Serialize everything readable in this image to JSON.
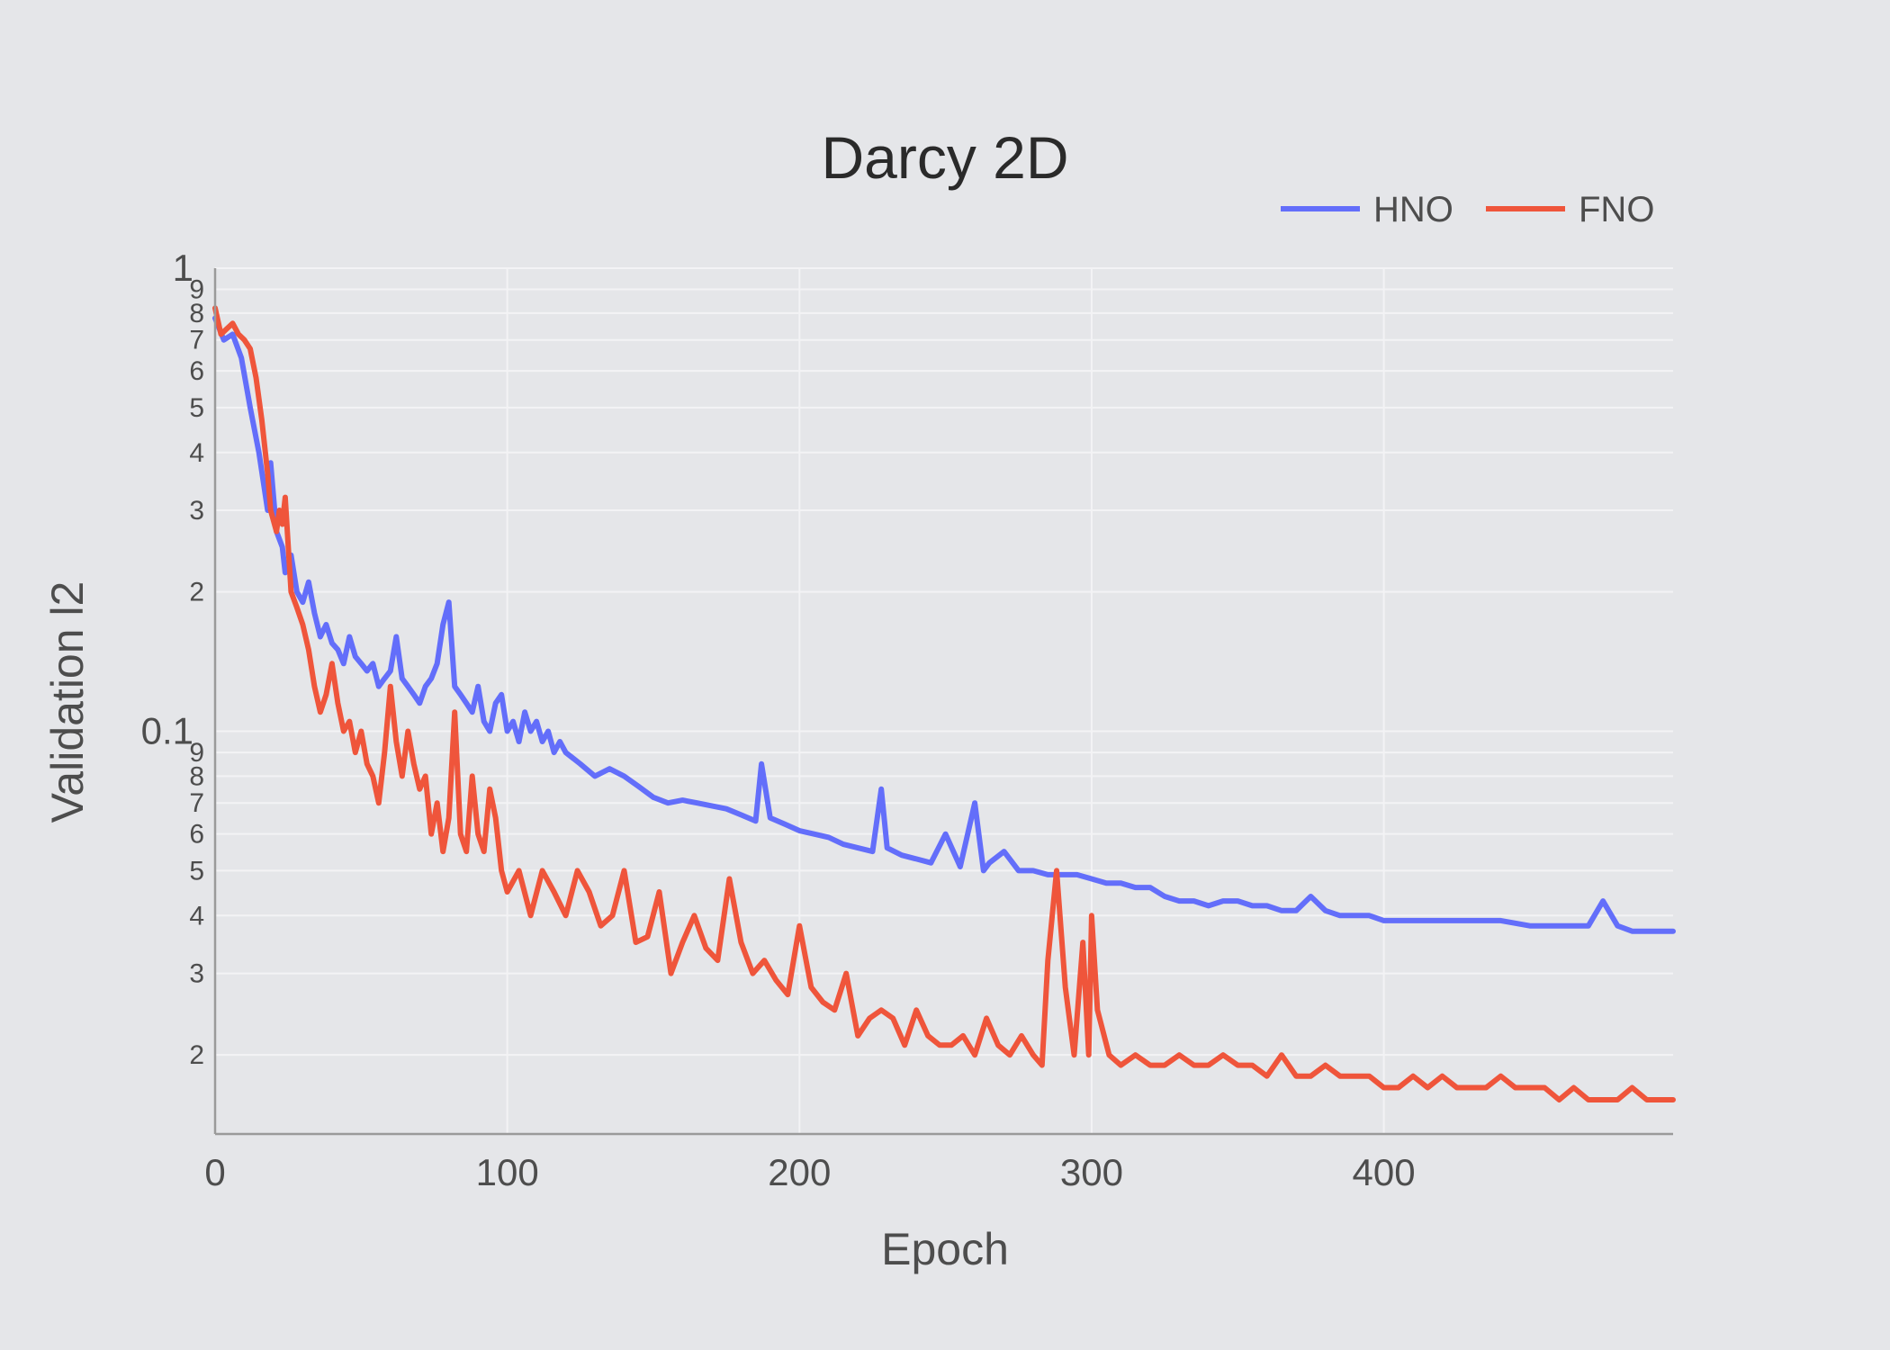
{
  "chart_data": {
    "type": "line",
    "title": "Darcy 2D",
    "xlabel": "Epoch",
    "ylabel": "Validation l2",
    "y_scale": "log",
    "xlim": [
      0,
      499
    ],
    "ylim": [
      0.0135,
      1
    ],
    "x_ticks": [
      0,
      100,
      200,
      300,
      400
    ],
    "y_major_ticks": [
      {
        "value": 0.1,
        "label": "0.1"
      },
      {
        "value": 1,
        "label": "1"
      }
    ],
    "y_minor_ticks": [
      {
        "value": 0.02,
        "label": "2"
      },
      {
        "value": 0.03,
        "label": "3"
      },
      {
        "value": 0.04,
        "label": "4"
      },
      {
        "value": 0.05,
        "label": "5"
      },
      {
        "value": 0.06,
        "label": "6"
      },
      {
        "value": 0.07,
        "label": "7"
      },
      {
        "value": 0.08,
        "label": "8"
      },
      {
        "value": 0.09,
        "label": "9"
      },
      {
        "value": 0.2,
        "label": "2"
      },
      {
        "value": 0.3,
        "label": "3"
      },
      {
        "value": 0.4,
        "label": "4"
      },
      {
        "value": 0.5,
        "label": "5"
      },
      {
        "value": 0.6,
        "label": "6"
      },
      {
        "value": 0.7,
        "label": "7"
      },
      {
        "value": 0.8,
        "label": "8"
      },
      {
        "value": 0.9,
        "label": "9"
      }
    ],
    "grid": true,
    "legend_position": "top-right",
    "series": [
      {
        "name": "HNO",
        "color": "#636efa",
        "x": [
          0,
          3,
          6,
          9,
          12,
          15,
          18,
          19,
          21,
          23,
          24,
          26,
          28,
          30,
          32,
          34,
          36,
          38,
          40,
          42,
          44,
          46,
          48,
          50,
          52,
          54,
          56,
          58,
          60,
          62,
          64,
          66,
          68,
          70,
          72,
          74,
          76,
          78,
          80,
          82,
          84,
          86,
          88,
          90,
          92,
          94,
          96,
          98,
          100,
          102,
          104,
          106,
          108,
          110,
          112,
          114,
          116,
          118,
          120,
          125,
          130,
          135,
          140,
          145,
          150,
          155,
          160,
          165,
          170,
          175,
          180,
          185,
          187,
          190,
          195,
          200,
          205,
          210,
          215,
          220,
          225,
          228,
          230,
          235,
          240,
          245,
          250,
          255,
          260,
          263,
          265,
          270,
          275,
          280,
          285,
          290,
          295,
          300,
          305,
          310,
          315,
          320,
          325,
          330,
          335,
          340,
          345,
          350,
          355,
          360,
          365,
          370,
          375,
          380,
          385,
          390,
          395,
          400,
          410,
          420,
          430,
          440,
          450,
          460,
          470,
          475,
          480,
          485,
          490,
          495,
          499
        ],
        "y": [
          0.78,
          0.7,
          0.72,
          0.64,
          0.5,
          0.4,
          0.3,
          0.38,
          0.27,
          0.25,
          0.22,
          0.24,
          0.2,
          0.19,
          0.21,
          0.18,
          0.16,
          0.17,
          0.155,
          0.15,
          0.14,
          0.16,
          0.145,
          0.14,
          0.135,
          0.14,
          0.125,
          0.13,
          0.135,
          0.16,
          0.13,
          0.125,
          0.12,
          0.115,
          0.125,
          0.13,
          0.14,
          0.17,
          0.19,
          0.125,
          0.12,
          0.115,
          0.11,
          0.125,
          0.105,
          0.1,
          0.115,
          0.12,
          0.1,
          0.105,
          0.095,
          0.11,
          0.1,
          0.105,
          0.095,
          0.1,
          0.09,
          0.095,
          0.09,
          0.085,
          0.08,
          0.083,
          0.08,
          0.076,
          0.072,
          0.07,
          0.071,
          0.07,
          0.069,
          0.068,
          0.066,
          0.064,
          0.085,
          0.065,
          0.063,
          0.061,
          0.06,
          0.059,
          0.057,
          0.056,
          0.055,
          0.075,
          0.056,
          0.054,
          0.053,
          0.052,
          0.06,
          0.051,
          0.07,
          0.05,
          0.052,
          0.055,
          0.05,
          0.05,
          0.049,
          0.049,
          0.049,
          0.048,
          0.047,
          0.047,
          0.046,
          0.046,
          0.044,
          0.043,
          0.043,
          0.042,
          0.043,
          0.043,
          0.042,
          0.042,
          0.041,
          0.041,
          0.044,
          0.041,
          0.04,
          0.04,
          0.04,
          0.039,
          0.039,
          0.039,
          0.039,
          0.039,
          0.038,
          0.038,
          0.038,
          0.043,
          0.038,
          0.037,
          0.037,
          0.037,
          0.037
        ]
      },
      {
        "name": "FNO",
        "color": "#ef553b",
        "x": [
          0,
          2,
          4,
          6,
          8,
          10,
          12,
          14,
          16,
          18,
          19,
          21,
          22,
          23,
          24,
          26,
          28,
          30,
          32,
          34,
          36,
          38,
          40,
          42,
          44,
          46,
          48,
          50,
          52,
          54,
          56,
          58,
          60,
          62,
          64,
          66,
          68,
          70,
          72,
          74,
          76,
          78,
          80,
          82,
          84,
          86,
          88,
          90,
          92,
          94,
          96,
          98,
          100,
          104,
          108,
          112,
          116,
          120,
          124,
          128,
          132,
          136,
          140,
          144,
          148,
          152,
          156,
          160,
          164,
          168,
          172,
          176,
          180,
          184,
          188,
          192,
          196,
          200,
          204,
          208,
          212,
          216,
          220,
          224,
          228,
          232,
          236,
          240,
          244,
          248,
          252,
          256,
          260,
          264,
          268,
          272,
          276,
          280,
          283,
          285,
          288,
          291,
          294,
          297,
          299,
          300,
          302,
          306,
          310,
          315,
          320,
          325,
          330,
          335,
          340,
          345,
          350,
          355,
          360,
          365,
          370,
          375,
          380,
          385,
          390,
          395,
          400,
          405,
          410,
          415,
          420,
          425,
          430,
          435,
          440,
          445,
          450,
          455,
          460,
          465,
          470,
          475,
          480,
          485,
          490,
          495,
          497,
          499
        ],
        "y": [
          0.82,
          0.72,
          0.74,
          0.76,
          0.72,
          0.7,
          0.67,
          0.58,
          0.47,
          0.36,
          0.3,
          0.27,
          0.3,
          0.28,
          0.32,
          0.2,
          0.185,
          0.17,
          0.15,
          0.125,
          0.11,
          0.12,
          0.14,
          0.115,
          0.1,
          0.105,
          0.09,
          0.1,
          0.085,
          0.08,
          0.07,
          0.09,
          0.125,
          0.095,
          0.08,
          0.1,
          0.085,
          0.075,
          0.08,
          0.06,
          0.07,
          0.055,
          0.065,
          0.11,
          0.06,
          0.055,
          0.08,
          0.06,
          0.055,
          0.075,
          0.065,
          0.05,
          0.045,
          0.05,
          0.04,
          0.05,
          0.045,
          0.04,
          0.05,
          0.045,
          0.038,
          0.04,
          0.05,
          0.035,
          0.036,
          0.045,
          0.03,
          0.035,
          0.04,
          0.034,
          0.032,
          0.048,
          0.035,
          0.03,
          0.032,
          0.029,
          0.027,
          0.038,
          0.028,
          0.026,
          0.025,
          0.03,
          0.022,
          0.024,
          0.025,
          0.024,
          0.021,
          0.025,
          0.022,
          0.021,
          0.021,
          0.022,
          0.02,
          0.024,
          0.021,
          0.02,
          0.022,
          0.02,
          0.019,
          0.032,
          0.05,
          0.028,
          0.02,
          0.035,
          0.02,
          0.04,
          0.025,
          0.02,
          0.019,
          0.02,
          0.019,
          0.019,
          0.02,
          0.019,
          0.019,
          0.02,
          0.019,
          0.019,
          0.018,
          0.02,
          0.018,
          0.018,
          0.019,
          0.018,
          0.018,
          0.018,
          0.017,
          0.017,
          0.018,
          0.017,
          0.018,
          0.017,
          0.017,
          0.017,
          0.018,
          0.017,
          0.017,
          0.017,
          0.016,
          0.017,
          0.016,
          0.016,
          0.016,
          0.017,
          0.016,
          0.016,
          0.016,
          0.016
        ]
      }
    ]
  }
}
